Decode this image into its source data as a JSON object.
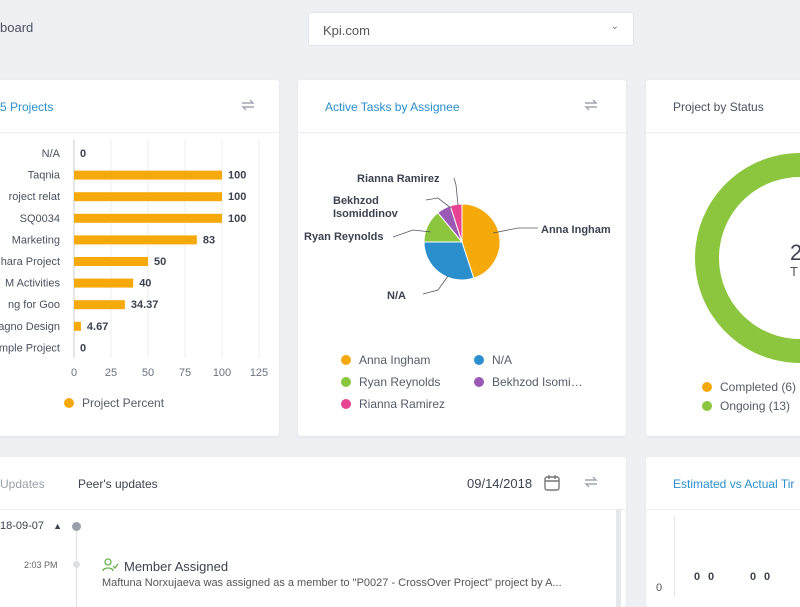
{
  "header": {
    "title_partial": "board",
    "domain_select_value": "Kpi.com"
  },
  "projects_card": {
    "title_partial": "5 Projects",
    "legend_label": "Project Percent",
    "legend_color": "#f5a90a",
    "x_ticks": [
      "0",
      "25",
      "50",
      "75",
      "100",
      "125"
    ]
  },
  "chart_data": [
    {
      "type": "bar",
      "orientation": "horizontal",
      "title": "5 Projects",
      "categories": [
        "N/A",
        "Taqnia",
        "roject relat",
        "SQ0034",
        "Marketing",
        "hara Project",
        "M Activities",
        "ng for Goo",
        "agno Design",
        "mple Project"
      ],
      "values": [
        0,
        100,
        100,
        100,
        83,
        50,
        40,
        34.37,
        4.67,
        0
      ],
      "value_labels": [
        "0",
        "100",
        "100",
        "100",
        "83",
        "50",
        "40",
        "34.37",
        "4.67",
        "0"
      ],
      "xlim": [
        0,
        125
      ],
      "series": [
        {
          "name": "Project Percent",
          "values": [
            0,
            100,
            100,
            100,
            83,
            50,
            40,
            34.37,
            4.67,
            0
          ]
        }
      ]
    },
    {
      "type": "pie",
      "title": "Active Tasks by Assignee",
      "categories": [
        "Anna Ingham",
        "N/A",
        "Ryan Reynolds",
        "Bekhzod Isomiddinov",
        "Rianna Ramirez"
      ],
      "values": [
        45,
        30,
        14,
        6,
        5
      ]
    },
    {
      "type": "pie",
      "title": "Project by Status",
      "categories": [
        "Completed (6)",
        "Ongoing (13)"
      ],
      "values": [
        6,
        13
      ]
    }
  ],
  "tasks_card": {
    "title": "Active Tasks by Assignee",
    "slices": [
      {
        "label": "Anna Ingham",
        "color": "#f5a90a"
      },
      {
        "label": "N/A",
        "color": "#2a8fcc"
      },
      {
        "label": "Ryan Reynolds",
        "color": "#8cc63f"
      },
      {
        "label": "Bekhzod Isomiddinov",
        "color": "#9b59b6"
      },
      {
        "label": "Rianna Ramirez",
        "color": "#e84393"
      }
    ],
    "pie_label_bekhzod_line1": "Bekhzod",
    "pie_label_bekhzod_line2": "Isomiddinov",
    "legend": [
      "Anna Ingham",
      "N/A",
      "Ryan Reynolds",
      "Bekhzod Isomi…",
      "Rianna Ramirez"
    ]
  },
  "status_card": {
    "title": "Project by Status",
    "center_value_partial": "2",
    "center_label_partial": "T",
    "legend": [
      {
        "label": "Completed (6)",
        "color": "#f5a90a"
      },
      {
        "label": "Ongoing (13)",
        "color": "#8cc63f"
      }
    ]
  },
  "updates_card": {
    "tab_updates_partial": "Updates",
    "tab_peers": "Peer's updates",
    "date_value": "09/14/2018",
    "group_date_partial": "18-09-07",
    "entry_time": "2:03 PM",
    "entry_title": "Member Assigned",
    "entry_text": "Maftuna Norxujaeva was assigned as a member to \"P0027 - CrossOver Project\" project by A..."
  },
  "estimate_card": {
    "title_partial": "Estimated vs Actual Tir",
    "axis_zero": "0",
    "values": [
      "0",
      "0",
      "0",
      "0"
    ]
  }
}
